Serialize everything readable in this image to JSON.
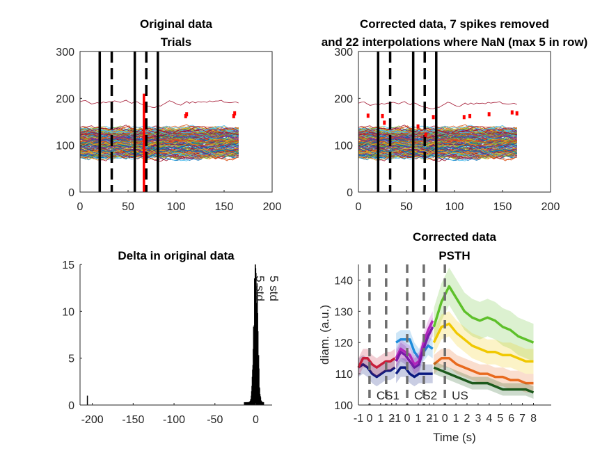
{
  "chart_data": [
    {
      "id": "top-left",
      "type": "line",
      "title": "Original data",
      "subtitle": "Trials",
      "xlim": [
        0,
        200
      ],
      "ylim": [
        0,
        300
      ],
      "xticks": [
        "0",
        "50",
        "100",
        "150",
        "200"
      ],
      "yticks": [
        "0",
        "100",
        "200",
        "300"
      ],
      "n_trials": 200,
      "x_range": [
        0,
        167
      ],
      "solid_vlines": [
        20.5,
        57,
        81
      ],
      "dashed_vlines": [
        33,
        69
      ],
      "spike_vline": [
        66.5,
        0,
        210
      ],
      "spike_marks": [
        [
          110,
          162
        ],
        [
          111,
          166
        ],
        [
          160,
          162
        ],
        [
          161,
          168
        ]
      ],
      "outlier_trace_level": 193
    },
    {
      "id": "top-right",
      "type": "line",
      "title": "Corrected data, 7 spikes removed",
      "subtitle": "and 22 interpolations where NaN (max 5 in row)",
      "xlim": [
        0,
        200
      ],
      "ylim": [
        0,
        300
      ],
      "xticks": [
        "0",
        "50",
        "100",
        "150",
        "200"
      ],
      "yticks": [
        "0",
        "100",
        "200",
        "300"
      ],
      "n_trials": 200,
      "x_range": [
        0,
        167
      ],
      "solid_vlines": [
        20.5,
        57,
        81
      ],
      "dashed_vlines": [
        33,
        69
      ],
      "spike_marks": [
        [
          10,
          163
        ],
        [
          25,
          162
        ],
        [
          27,
          148
        ],
        [
          62,
          140
        ],
        [
          70,
          122
        ],
        [
          78,
          160
        ],
        [
          110,
          160
        ],
        [
          116,
          162
        ],
        [
          136,
          166
        ],
        [
          160,
          170
        ],
        [
          165,
          168
        ]
      ]
    },
    {
      "id": "bottom-left",
      "type": "bar",
      "title": "Delta in original data",
      "xlim": [
        -215,
        20
      ],
      "ylim": [
        0,
        15
      ],
      "xticks": [
        "-200",
        "-150",
        "-100",
        "-50",
        "0"
      ],
      "yticks": [
        "0",
        "5",
        "10",
        "15"
      ],
      "outlier_bar": [
        -206,
        1
      ],
      "histogram_center": 0,
      "histogram_peak": 15,
      "threshold_labels": [
        "5 std",
        "5 std"
      ]
    },
    {
      "id": "bottom-right",
      "type": "line",
      "title": "Corrected data",
      "subtitle": "PSTH",
      "ylabel": "diam. (a.u.)",
      "xlabel": "Time (s)",
      "ylim": [
        100,
        145
      ],
      "yticks": [
        "100",
        "110",
        "120",
        "130",
        "140"
      ],
      "xtick_labels": [
        "-1",
        "0",
        "1",
        "2",
        "-1",
        "0",
        "1",
        "2",
        "-1",
        "0",
        "1",
        "2",
        "3",
        "4",
        "5",
        "6",
        "7",
        "8"
      ],
      "segments": [
        {
          "label": "CS1",
          "xlim": [
            -1,
            2.4
          ],
          "dashed_at": [
            0,
            1.5
          ]
        },
        {
          "label": "CS2",
          "xlim": [
            -1,
            2.4
          ],
          "dashed_at": [
            0,
            1.5
          ]
        },
        {
          "label": "US",
          "xlim": [
            -1,
            8
          ],
          "dashed_at": [
            0
          ]
        }
      ],
      "psth_series": [
        {
          "segment": 0,
          "color": "#0a1a80",
          "values": [
            112,
            113,
            112,
            110,
            109,
            110,
            111,
            111,
            112
          ],
          "err": 3
        },
        {
          "segment": 0,
          "color": "#c81e3a",
          "values": [
            112,
            115,
            115,
            113,
            112,
            113,
            114,
            114,
            115
          ],
          "err": 3
        },
        {
          "segment": 1,
          "color": "#1e8cdc",
          "values": [
            120,
            121,
            121,
            121,
            117,
            115,
            117,
            119,
            118
          ],
          "err": 3
        },
        {
          "segment": 1,
          "color": "#c02ac0",
          "values": [
            115,
            118,
            117,
            116,
            113,
            114,
            120,
            124,
            127
          ],
          "err": 3
        },
        {
          "segment": 1,
          "color": "#7a1ba8",
          "values": [
            114,
            117,
            116,
            114,
            112,
            113,
            118,
            122,
            125
          ],
          "err": 3
        },
        {
          "segment": 1,
          "color": "#0a1a80",
          "values": [
            110,
            112,
            112,
            110,
            109,
            110,
            110,
            110,
            110
          ],
          "err": 3
        },
        {
          "segment": 2,
          "color": "#5ec02a",
          "values": [
            125,
            133,
            138,
            134,
            130,
            128,
            127,
            128,
            127,
            125,
            124,
            122,
            121,
            120
          ],
          "err": 6
        },
        {
          "segment": 2,
          "color": "#f0c800",
          "values": [
            120,
            125,
            126,
            123,
            121,
            119,
            118,
            117,
            117,
            116,
            116,
            115,
            114,
            114
          ],
          "err": 4
        },
        {
          "segment": 2,
          "color": "#e86a1e",
          "values": [
            113,
            115,
            115,
            113,
            112,
            111,
            110,
            110,
            109,
            109,
            108,
            108,
            107,
            107
          ],
          "err": 3
        },
        {
          "segment": 2,
          "color": "#1c5a1c",
          "values": [
            112,
            111,
            110,
            109,
            108,
            107,
            107,
            107,
            106,
            105,
            105,
            105,
            105,
            104
          ],
          "err": 2
        }
      ]
    }
  ]
}
